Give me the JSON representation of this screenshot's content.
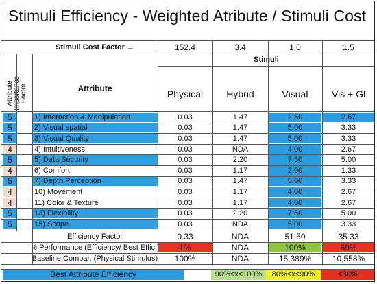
{
  "title": "Stimuli Efficiency - Weighted Atribute / Stimuli Cost",
  "cost_factor": {
    "label": "Stimuli Cost Factor →",
    "values": [
      "152.4",
      "3.4",
      "1.0",
      "1.5"
    ]
  },
  "stimuli_header": "Stimuli",
  "importance_header": "Attribute Importance Factor",
  "attribute_header": "Attribute",
  "columns": [
    "Physical",
    "Hybrid",
    "Visual",
    "Vis + Gl"
  ],
  "rows": [
    {
      "factor": "5",
      "attribute": "1) Interaction & Manipulation",
      "physical": "0.03",
      "hybrid": "1.47",
      "visual": "2.50",
      "visgl": "2.67"
    },
    {
      "factor": "5",
      "attribute": "2)  Visual spatial",
      "physical": "0.03",
      "hybrid": "1.47",
      "visual": "5.00",
      "visgl": "3.33"
    },
    {
      "factor": "5",
      "attribute": "3) Visual Quality",
      "physical": "0.03",
      "hybrid": "1.47",
      "visual": "5.00",
      "visgl": "3.33"
    },
    {
      "factor": "4",
      "attribute": "4) Intuitiveness",
      "physical": "0.03",
      "hybrid": "NDA",
      "visual": "4.00",
      "visgl": "2.67"
    },
    {
      "factor": "5",
      "attribute": "5)  Data Security",
      "physical": "0.03",
      "hybrid": "2.20",
      "visual": "7.50",
      "visgl": "5.00"
    },
    {
      "factor": "4",
      "attribute": "6)  Comfort",
      "physical": "0.03",
      "hybrid": "1.17",
      "visual": "2.00",
      "visgl": "1.33"
    },
    {
      "factor": "5",
      "attribute": "7)  Depth Perception",
      "physical": "0.03",
      "hybrid": "1.47",
      "visual": "5.00",
      "visgl": "3.33"
    },
    {
      "factor": "4",
      "attribute": "10) Movement",
      "physical": "0.03",
      "hybrid": "1.17",
      "visual": "4.00",
      "visgl": "2.67"
    },
    {
      "factor": "4",
      "attribute": "11)  Color & Texture",
      "physical": "0.03",
      "hybrid": "1.17",
      "visual": "4.00",
      "visgl": "2.67"
    },
    {
      "factor": "5",
      "attribute": "13)  Flexibility",
      "physical": "0.03",
      "hybrid": "2.20",
      "visual": "7.50",
      "visgl": "5.00"
    },
    {
      "factor": "5",
      "attribute": "15)  Scope",
      "physical": "0.03",
      "hybrid": "NDA",
      "visual": "5.00",
      "visgl": "3.33"
    }
  ],
  "summary": [
    {
      "label": "Efficiency Factor",
      "values": [
        "0.33",
        "NDA",
        "51.50",
        "35.33"
      ]
    },
    {
      "label": "% Performance (Efficiency/ Best Effic.)",
      "values": [
        "1%",
        "NDA",
        "100%",
        "69%"
      ]
    },
    {
      "label": "Baseline Compar. (Physical Stimulus)",
      "values": [
        "100%",
        "NDA",
        "15,389%",
        "10,558%"
      ]
    }
  ],
  "legend": {
    "best": "Best Attribute Efficiency",
    "green": "90%<x<100%",
    "yellow": "80%<x<90%",
    "red": "<80%"
  },
  "colors": {
    "blue_factor": "#2f9fe0",
    "tan_factor": "#f0ddd0",
    "best_blue": "#2c9ce0",
    "perf_red": "#e8321e",
    "perf_green": "#8cc63e",
    "legend_green": "#b7e08a",
    "legend_yellow": "#f2f21a",
    "legend_red": "#e4301d",
    "legend_blue": "#2c9ce0"
  }
}
